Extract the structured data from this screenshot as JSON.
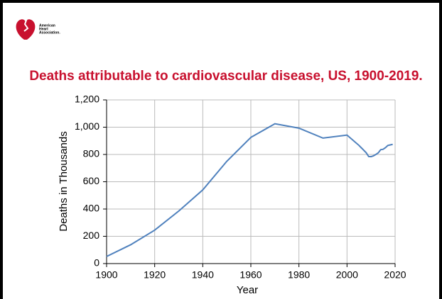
{
  "logo": {
    "lines": [
      "American",
      "Heart",
      "Association."
    ]
  },
  "chart_data": {
    "type": "line",
    "title": "Deaths attributable to cardiovascular disease, US, 1900-2019.",
    "x_label": "Year",
    "y_label": "Deaths in Thousands",
    "x": [
      1900,
      1910,
      1920,
      1930,
      1940,
      1950,
      1960,
      1970,
      1980,
      1990,
      2000,
      2005,
      2008,
      2009,
      2010,
      2011,
      2012,
      2013,
      2014,
      2015,
      2016,
      2017,
      2018,
      2019
    ],
    "series": [
      {
        "name": "Deaths",
        "color": "#4f81bd",
        "values": [
          52,
          138,
          245,
          385,
          540,
          750,
          925,
          1025,
          993,
          920,
          942,
          866,
          812,
          785,
          784,
          790,
          800,
          812,
          835,
          838,
          850,
          866,
          870,
          874
        ]
      }
    ],
    "xlim": [
      1900,
      2020
    ],
    "xticks": [
      1900,
      1920,
      1940,
      1960,
      1980,
      2000,
      2020
    ],
    "ylim": [
      0,
      1200
    ],
    "yticks": [
      0,
      200,
      400,
      600,
      800,
      {
        "value": 1000,
        "label": "1,000"
      },
      {
        "value": 1200,
        "label": "1,200"
      }
    ],
    "grid": true
  }
}
